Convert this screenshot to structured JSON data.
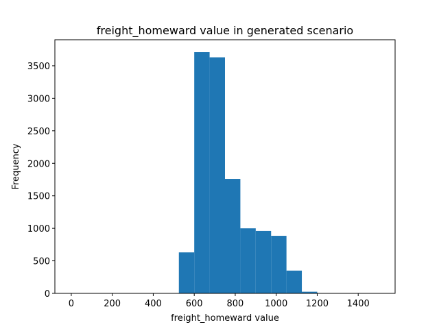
{
  "chart_data": {
    "type": "bar",
    "title": "freight_homeward value in generated scenario",
    "xlabel": "freight_homeward value",
    "ylabel": "Frequency",
    "xlim": [
      -80,
      1580
    ],
    "ylim": [
      0,
      3900
    ],
    "xticks": [
      "0",
      "200",
      "400",
      "600",
      "800",
      "1000",
      "1200",
      "1400"
    ],
    "yticks": [
      "0",
      "500",
      "1000",
      "1500",
      "2000",
      "2500",
      "3000",
      "3500"
    ],
    "grid": false,
    "bar_color": "#1f77b4",
    "bins": [
      {
        "x0": 525,
        "x1": 600,
        "value": 630
      },
      {
        "x0": 600,
        "x1": 675,
        "value": 3710
      },
      {
        "x0": 675,
        "x1": 750,
        "value": 3630
      },
      {
        "x0": 750,
        "x1": 825,
        "value": 1760
      },
      {
        "x0": 825,
        "x1": 900,
        "value": 1000
      },
      {
        "x0": 900,
        "x1": 975,
        "value": 960
      },
      {
        "x0": 975,
        "x1": 1050,
        "value": 885
      },
      {
        "x0": 1050,
        "x1": 1125,
        "value": 350
      },
      {
        "x0": 1125,
        "x1": 1200,
        "value": 25
      }
    ]
  }
}
